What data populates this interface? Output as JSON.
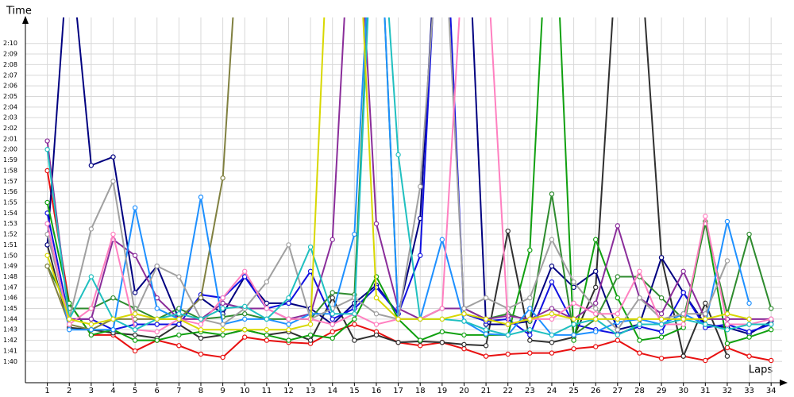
{
  "chart_data": {
    "type": "line",
    "y_label": "Time",
    "x_label": "Laps",
    "x": [
      1,
      2,
      3,
      4,
      5,
      6,
      7,
      8,
      9,
      10,
      11,
      12,
      13,
      14,
      15,
      16,
      17,
      18,
      19,
      20,
      21,
      22,
      23,
      24,
      25,
      26,
      27,
      28,
      29,
      30,
      31,
      32,
      33,
      34
    ],
    "xlim": [
      0,
      34.5
    ],
    "xticks": [
      1,
      2,
      3,
      4,
      5,
      6,
      7,
      8,
      9,
      10,
      11,
      12,
      13,
      14,
      15,
      16,
      17,
      18,
      19,
      20,
      21,
      22,
      23,
      24,
      25,
      26,
      27,
      28,
      29,
      30,
      31,
      32,
      33,
      34
    ],
    "ylim": [
      98,
      132
    ],
    "yticks": [
      {
        "value": 100,
        "label": "1:40"
      },
      {
        "value": 101,
        "label": "1:41"
      },
      {
        "value": 102,
        "label": "1:42"
      },
      {
        "value": 103,
        "label": "1:43"
      },
      {
        "value": 104,
        "label": "1:44"
      },
      {
        "value": 105,
        "label": "1:45"
      },
      {
        "value": 106,
        "label": "1:46"
      },
      {
        "value": 107,
        "label": "1:47"
      },
      {
        "value": 108,
        "label": "1:48"
      },
      {
        "value": 109,
        "label": "1:49"
      },
      {
        "value": 110,
        "label": "1:50"
      },
      {
        "value": 111,
        "label": "1:51"
      },
      {
        "value": 112,
        "label": "1:52"
      },
      {
        "value": 113,
        "label": "1:53"
      },
      {
        "value": 114,
        "label": "1:54"
      },
      {
        "value": 115,
        "label": "1:55"
      },
      {
        "value": 116,
        "label": "1:56"
      },
      {
        "value": 117,
        "label": "1:57"
      },
      {
        "value": 118,
        "label": "1:58"
      },
      {
        "value": 119,
        "label": "1:59"
      },
      {
        "value": 120,
        "label": "2:00"
      },
      {
        "value": 121,
        "label": "2:01"
      },
      {
        "value": 122,
        "label": "2:02"
      },
      {
        "value": 123,
        "label": "2:03"
      },
      {
        "value": 124,
        "label": "2:04"
      },
      {
        "value": 125,
        "label": "2:05"
      },
      {
        "value": 126,
        "label": "2:06"
      },
      {
        "value": 127,
        "label": "2:07"
      },
      {
        "value": 128,
        "label": "2:08"
      },
      {
        "value": 129,
        "label": "2:09"
      },
      {
        "value": 130,
        "label": "2:10"
      }
    ],
    "grid": true,
    "series": [
      {
        "color": "#e81010",
        "values": [
          118.0,
          105.5,
          102.5,
          102.5,
          101.0,
          102.0,
          101.5,
          100.7,
          100.4,
          102.3,
          102.0,
          101.8,
          101.7,
          102.8,
          103.5,
          102.8,
          101.8,
          101.5,
          101.8,
          101.2,
          100.5,
          100.7,
          100.8,
          100.8,
          101.2,
          101.4,
          102.0,
          100.8,
          100.3,
          100.5,
          100.1,
          101.3,
          100.5,
          100.1
        ]
      },
      {
        "color": "#303030",
        "values": [
          111.0,
          103.2,
          103.0,
          102.7,
          102.5,
          102.2,
          103.5,
          102.2,
          102.5,
          103.0,
          102.5,
          102.8,
          102.0,
          106.0,
          102.0,
          102.5,
          101.8,
          101.9,
          101.8,
          101.6,
          101.5,
          112.3,
          102.0,
          101.8,
          102.3,
          107.0,
          140.0,
          140.0,
          109.8,
          100.5,
          105.5,
          100.5,
          null,
          null
        ]
      },
      {
        "color": "#000080",
        "values": [
          111.0,
          140.0,
          118.5,
          119.3,
          106.5,
          109.0,
          104.0,
          106.0,
          104.5,
          108.0,
          105.5,
          105.5,
          105.0,
          103.5,
          105.5,
          107.2,
          104.5,
          113.5,
          150.0,
          150.0,
          103.5,
          103.5,
          103.8,
          109.0,
          107.0,
          108.5,
          103.0,
          103.5,
          109.8,
          106.5,
          103.5,
          103.2,
          102.6,
          103.8
        ]
      },
      {
        "color": "#1010e0",
        "values": [
          114.0,
          104.0,
          104.0,
          103.0,
          103.5,
          103.5,
          103.5,
          106.3,
          106.0,
          108.0,
          105.0,
          105.5,
          108.5,
          104.0,
          105.0,
          107.0,
          104.5,
          110.0,
          150.0,
          104.5,
          103.8,
          104.0,
          102.5,
          107.5,
          103.5,
          103.0,
          102.6,
          103.3,
          102.8,
          106.5,
          103.2,
          103.5,
          102.8,
          103.5
        ]
      },
      {
        "color": "#10a010",
        "values": [
          115.0,
          105.5,
          102.5,
          103.0,
          102.0,
          102.0,
          102.5,
          102.8,
          102.5,
          103.0,
          102.5,
          102.0,
          102.5,
          102.2,
          104.0,
          108.0,
          104.0,
          102.0,
          102.8,
          102.5,
          102.5,
          102.5,
          110.5,
          150.0,
          102.0,
          111.5,
          106.0,
          102.0,
          102.3,
          103.2,
          113.2,
          101.7,
          102.3,
          103.0
        ]
      },
      {
        "color": "#2e8b2e",
        "values": [
          109.0,
          105.0,
          105.0,
          106.0,
          105.0,
          104.0,
          105.0,
          104.0,
          104.2,
          104.5,
          104.0,
          104.0,
          104.0,
          106.5,
          106.3,
          150.0,
          104.0,
          104.0,
          105.0,
          105.0,
          104.0,
          104.5,
          103.8,
          115.8,
          102.5,
          104.0,
          108.0,
          108.0,
          106.0,
          104.0,
          113.0,
          104.5,
          112.0,
          105.0
        ]
      },
      {
        "color": "#8a2d9a",
        "values": [
          120.8,
          104.0,
          104.0,
          111.5,
          110.0,
          106.0,
          104.0,
          104.0,
          105.5,
          105.0,
          105.0,
          104.0,
          104.5,
          111.5,
          150.0,
          113.0,
          105.0,
          104.0,
          105.0,
          105.0,
          104.0,
          104.3,
          104.0,
          105.0,
          104.0,
          105.5,
          112.8,
          106.0,
          104.5,
          108.5,
          104.0,
          104.0,
          104.0,
          104.0
        ]
      },
      {
        "color": "#808040",
        "values": [
          109.0,
          103.5,
          103.0,
          104.0,
          104.0,
          104.0,
          104.0,
          106.0,
          117.3,
          150.0,
          null,
          null,
          null,
          null,
          null,
          null,
          null,
          null,
          null,
          null,
          null,
          null,
          null,
          null,
          null,
          null,
          null,
          null,
          null,
          null,
          null,
          null,
          null,
          null
        ]
      },
      {
        "color": "#1e90ff",
        "values": [
          113.0,
          103.0,
          103.0,
          103.0,
          114.5,
          105.0,
          104.0,
          115.5,
          103.5,
          104.0,
          104.0,
          103.5,
          104.5,
          104.5,
          112.0,
          150.0,
          104.0,
          104.0,
          111.5,
          103.8,
          102.6,
          102.5,
          105.0,
          102.5,
          102.5,
          102.8,
          103.7,
          104.0,
          103.5,
          104.5,
          103.5,
          113.2,
          105.5,
          null
        ]
      },
      {
        "color": "#a0a0a0",
        "values": [
          112.0,
          104.0,
          112.5,
          117.0,
          104.5,
          109.0,
          108.0,
          104.0,
          103.5,
          105.0,
          107.5,
          111.0,
          104.0,
          105.0,
          106.0,
          104.5,
          104.0,
          116.5,
          145.0,
          105.0,
          106.0,
          105.0,
          106.0,
          111.5,
          107.5,
          105.0,
          103.0,
          106.0,
          104.0,
          104.5,
          104.5,
          109.5,
          null,
          null
        ]
      },
      {
        "color": "#ff80c0",
        "values": [
          113.0,
          103.5,
          105.0,
          112.0,
          103.0,
          102.8,
          104.0,
          103.5,
          106.0,
          108.5,
          105.0,
          104.0,
          104.0,
          103.5,
          104.5,
          103.5,
          104.0,
          104.0,
          105.0,
          140.0,
          140.0,
          103.5,
          104.0,
          104.0,
          105.5,
          104.5,
          104.5,
          108.5,
          103.5,
          103.5,
          113.7,
          103.5,
          103.5,
          104.0
        ]
      },
      {
        "color": "#20c0c0",
        "values": [
          120.0,
          104.0,
          108.0,
          104.0,
          103.0,
          104.0,
          104.5,
          104.0,
          105.0,
          105.2,
          104.0,
          106.0,
          110.8,
          104.5,
          104.5,
          150.0,
          119.5,
          104.0,
          104.0,
          103.8,
          103.0,
          102.5,
          103.0,
          102.5,
          103.5,
          104.0,
          102.5,
          103.5,
          103.5,
          104.0,
          103.5,
          103.0,
          103.5,
          103.5
        ]
      },
      {
        "color": "#d8d800",
        "values": [
          110.0,
          104.0,
          103.5,
          104.0,
          104.5,
          104.0,
          104.0,
          103.0,
          103.0,
          103.0,
          103.0,
          103.0,
          103.5,
          150.0,
          150.0,
          106.0,
          104.0,
          104.0,
          104.0,
          104.5,
          104.0,
          103.5,
          104.0,
          104.5,
          104.0,
          104.0,
          104.0,
          104.0,
          104.0,
          104.0,
          104.0,
          104.5,
          104.0,
          null
        ]
      }
    ]
  }
}
